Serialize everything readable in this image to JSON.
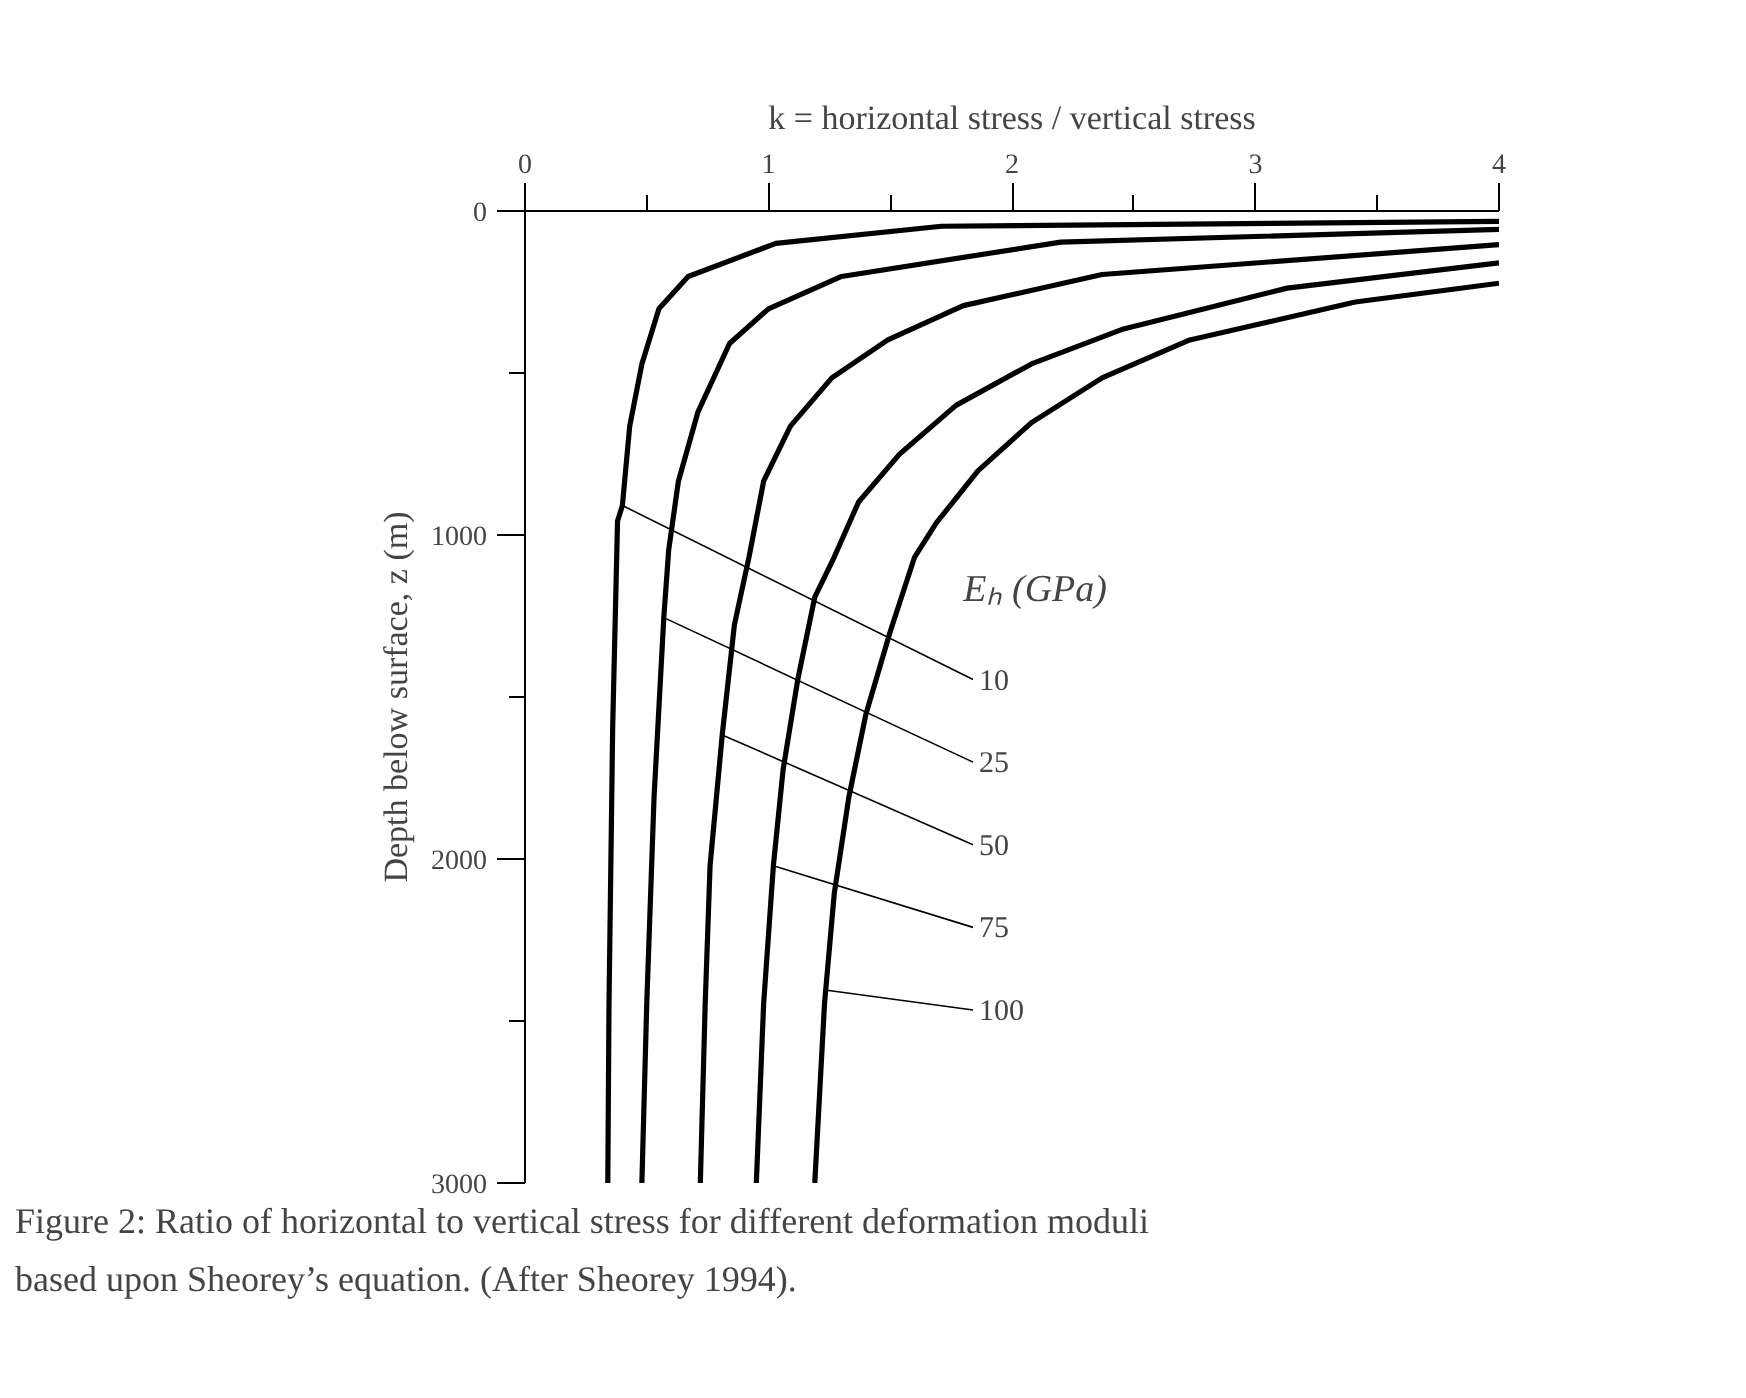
{
  "chart_data": {
    "type": "line",
    "xlabel": "k = horizontal stress / vertical stress",
    "ylabel": "Depth below surface, z (m)",
    "legend_title": "Eₕ (GPa)",
    "xlim": [
      0,
      4
    ],
    "ylim": [
      3000,
      0
    ],
    "xticks": [
      0,
      {
        "value": 0.5,
        "label": null
      },
      1,
      {
        "value": 1.5,
        "label": null
      },
      2,
      {
        "value": 2.5,
        "label": null
      },
      3,
      {
        "value": 3.5,
        "label": null
      },
      4
    ],
    "yticks": [
      0,
      {
        "value": 500,
        "label": null
      },
      1000,
      {
        "value": 1500,
        "label": null
      },
      2000,
      {
        "value": 2500,
        "label": null
      },
      3000
    ],
    "grid": false,
    "marker": "none",
    "line_style": "solid",
    "series": [
      {
        "color": "#000000",
        "x": [
          4,
          1.71,
          1.03,
          0.67,
          0.55,
          0.48,
          0.43,
          0.4,
          0.38,
          0.36,
          0.345,
          0.34
        ],
        "values": [
          32,
          47,
          100,
          202,
          302,
          472,
          664,
          909,
          957,
          1596,
          2447,
          3000
        ]
      },
      {
        "color": "#000000",
        "x": [
          4,
          2.2,
          1.3,
          1.0,
          0.84,
          0.71,
          0.63,
          0.59,
          0.57,
          0.53,
          0.5,
          0.48
        ],
        "values": [
          57,
          96,
          202,
          302,
          409,
          621,
          834,
          1047,
          1255,
          1809,
          2447,
          3000
        ]
      },
      {
        "color": "#000000",
        "x": [
          4,
          2.37,
          1.8,
          1.49,
          1.26,
          1.09,
          0.98,
          0.92,
          0.86,
          0.81,
          0.76,
          0.74,
          0.72
        ],
        "values": [
          104,
          196,
          292,
          398,
          515,
          664,
          834,
          1068,
          1277,
          1617,
          2021,
          2447,
          3000
        ]
      },
      {
        "color": "#000000",
        "x": [
          4,
          3.13,
          2.45,
          2.08,
          1.77,
          1.54,
          1.37,
          1.27,
          1.19,
          1.12,
          1.06,
          1.02,
          0.98,
          0.95
        ],
        "values": [
          160,
          238,
          366,
          472,
          600,
          749,
          898,
          1068,
          1192,
          1447,
          1724,
          2021,
          2447,
          3000
        ]
      },
      {
        "color": "#000000",
        "x": [
          4,
          3.41,
          2.73,
          2.37,
          2.08,
          1.86,
          1.69,
          1.6,
          1.5,
          1.4,
          1.33,
          1.27,
          1.23,
          1.19
        ],
        "values": [
          223,
          281,
          398,
          515,
          653,
          802,
          962,
          1068,
          1298,
          1553,
          1809,
          2107,
          2447,
          3000
        ]
      }
    ],
    "annotations": [
      {
        "text": "10",
        "x": 0.4,
        "y": 909
      },
      {
        "text": "25",
        "x": 0.57,
        "y": 1255
      },
      {
        "text": "50",
        "x": 0.81,
        "y": 1617
      },
      {
        "text": "75",
        "x": 1.02,
        "y": 2021
      },
      {
        "text": "100",
        "x": 1.24,
        "y": 2405
      },
      "Figure 2: Ratio of horizontal to vertical stress for different deformation moduli based upon Sheorey’s equation. (After Sheorey 1994)."
    ]
  }
}
